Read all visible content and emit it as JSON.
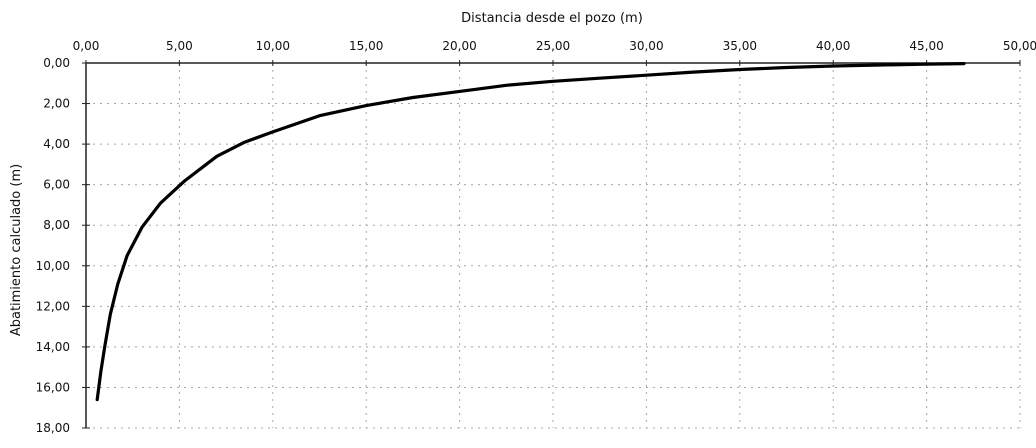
{
  "chart_data": {
    "type": "line",
    "title": "Distancia desde el pozo (m)",
    "xlabel": "Distancia desde el pozo (m)",
    "ylabel": "Abatimiento calculado (m)",
    "x_axis_position": "top",
    "y_axis_inverted": true,
    "xlim": [
      0,
      50
    ],
    "ylim": [
      0,
      18
    ],
    "x_ticks": [
      "0,00",
      "5,00",
      "10,00",
      "15,00",
      "20,00",
      "25,00",
      "30,00",
      "35,00",
      "40,00",
      "45,00",
      "50,00"
    ],
    "y_ticks": [
      "0,00",
      "2,00",
      "4,00",
      "6,00",
      "8,00",
      "10,00",
      "12,00",
      "14,00",
      "16,00",
      "18,00"
    ],
    "grid": true,
    "legend": "none",
    "series": [
      {
        "color": "#000000",
        "x": [
          0.6,
          0.8,
          1.0,
          1.3,
          1.7,
          2.2,
          3.0,
          4.0,
          5.3,
          7.0,
          8.5,
          10.0,
          12.5,
          15.0,
          17.5,
          20.0,
          22.5,
          25.0,
          27.5,
          30.0,
          32.5,
          35.0,
          37.5,
          40.0,
          42.5,
          45.0,
          47.0
        ],
        "y": [
          16.6,
          15.2,
          14.0,
          12.4,
          10.9,
          9.5,
          8.1,
          6.9,
          5.8,
          4.6,
          3.9,
          3.4,
          2.6,
          2.1,
          1.7,
          1.4,
          1.1,
          0.9,
          0.75,
          0.6,
          0.45,
          0.32,
          0.22,
          0.15,
          0.1,
          0.06,
          0.03
        ]
      }
    ]
  }
}
